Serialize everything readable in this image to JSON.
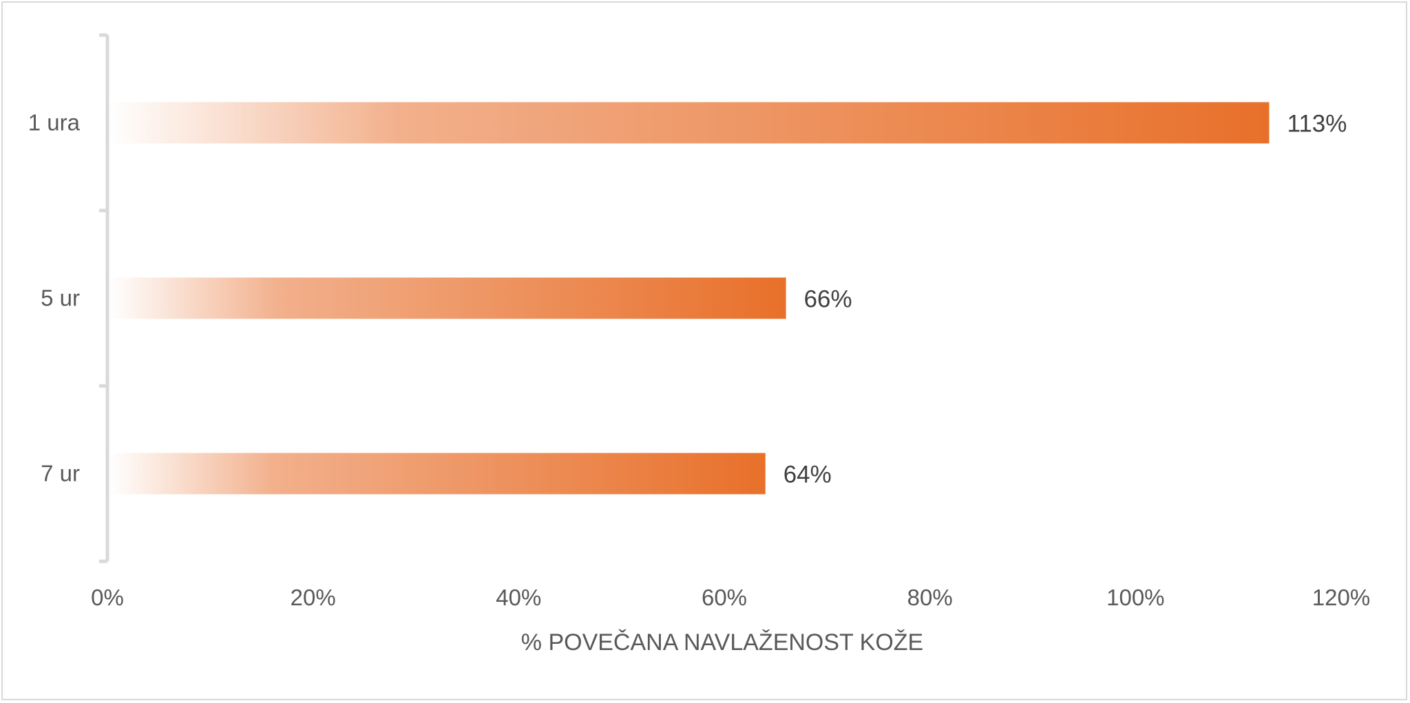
{
  "chart_data": {
    "type": "bar",
    "orientation": "horizontal",
    "categories": [
      "1 ura",
      "5 ur",
      "7 ur"
    ],
    "values": [
      113,
      66,
      64
    ],
    "data_labels": [
      "113%",
      "66%",
      "64%"
    ],
    "xlabel": "% POVEČANA NAVLAŽENOST KOŽE",
    "ylabel": "",
    "xlim": [
      0,
      120
    ],
    "x_ticks": [
      "0%",
      "20%",
      "40%",
      "60%",
      "80%",
      "100%",
      "120%"
    ],
    "grid": false,
    "legend": "none",
    "bar_fill": "gradient",
    "bar_color": "#E8702A",
    "bar_color_light": "#FFFFFF"
  }
}
